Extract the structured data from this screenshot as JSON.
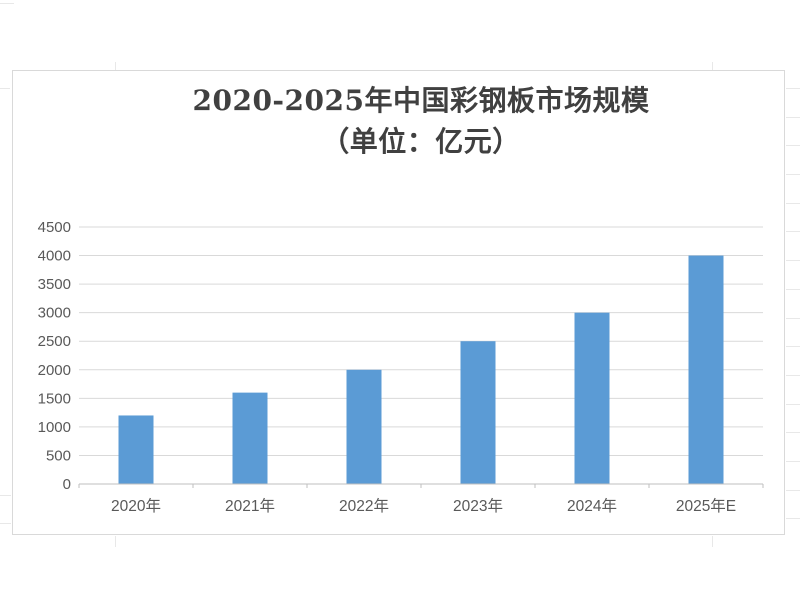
{
  "sheet": {
    "background": "#ffffff",
    "gridline_color": "#e8e8e8"
  },
  "chart": {
    "background": "#ffffff",
    "border_color": "#d9d9d9"
  },
  "chart_data": {
    "type": "bar",
    "title": "2020-2025年中国彩钢板市场规模（单位：亿元）",
    "title_line1": "2020-2025年中国彩钢板市场规模",
    "title_line2": "（单位：亿元）",
    "categories": [
      "2020年",
      "2021年",
      "2022年",
      "2023年",
      "2024年",
      "2025年E"
    ],
    "values": [
      1200,
      1600,
      2000,
      2500,
      3000,
      4000
    ],
    "xlabel": "",
    "ylabel": "",
    "ylim": [
      0,
      4500
    ],
    "yticks": [
      0,
      500,
      1000,
      1500,
      2000,
      2500,
      3000,
      3500,
      4000,
      4500
    ],
    "grid": true,
    "legend_position": "none",
    "colors": {
      "bar": "#5b9bd5",
      "gridline": "#d9d9d9",
      "axis_line": "#bfbfbf",
      "tick_label": "#595959",
      "title": "#404040"
    }
  }
}
